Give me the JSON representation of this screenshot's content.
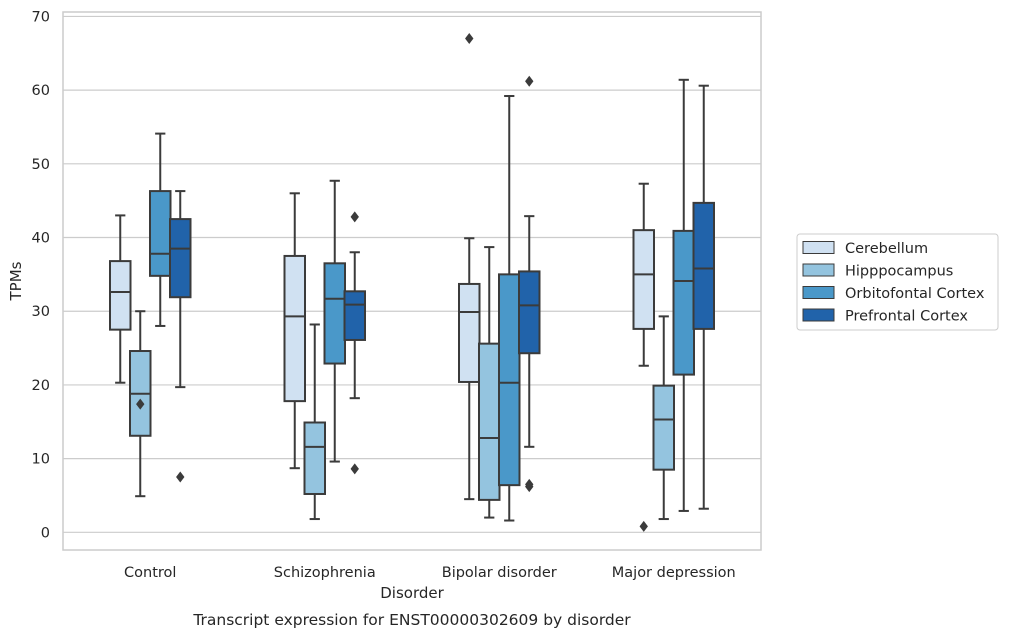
{
  "chart_data": {
    "type": "boxplot",
    "title": "",
    "caption": "Transcript expression for ENST00000302609 by disorder",
    "xlabel": "Disorder",
    "ylabel": "TPMs",
    "ylim": [
      -2.4,
      70.6
    ],
    "yticks": [
      0,
      10,
      20,
      30,
      40,
      50,
      60,
      70
    ],
    "grid": "horizontal",
    "legend_position": "right",
    "categories": [
      "Control",
      "Schizophrenia",
      "Bipolar disorder",
      "Major depression"
    ],
    "series": [
      {
        "name": "Cerebellum",
        "color": "#d0e1f2",
        "boxes": [
          {
            "whislo": 20.3,
            "q1": 27.5,
            "med": 32.6,
            "q3": 36.8,
            "whishi": 43.0,
            "fliers": []
          },
          {
            "whislo": 8.7,
            "q1": 17.8,
            "med": 29.3,
            "q3": 37.5,
            "whishi": 46.0,
            "fliers": []
          },
          {
            "whislo": 4.5,
            "q1": 20.4,
            "med": 29.9,
            "q3": 33.7,
            "whishi": 39.9,
            "fliers": [
              67.0
            ]
          },
          {
            "whislo": 22.6,
            "q1": 27.6,
            "med": 35.0,
            "q3": 41.0,
            "whishi": 47.3,
            "fliers": [
              0.8
            ]
          }
        ]
      },
      {
        "name": "Hipppocampus",
        "color": "#94c4df",
        "boxes": [
          {
            "whislo": 4.9,
            "q1": 13.1,
            "med": 18.8,
            "q3": 24.6,
            "whishi": 30.0,
            "fliers": [
              17.4
            ]
          },
          {
            "whislo": 1.8,
            "q1": 5.2,
            "med": 11.6,
            "q3": 14.9,
            "whishi": 28.2,
            "fliers": []
          },
          {
            "whislo": 2.0,
            "q1": 4.4,
            "med": 12.8,
            "q3": 25.6,
            "whishi": 38.7,
            "fliers": []
          },
          {
            "whislo": 1.8,
            "q1": 8.5,
            "med": 15.3,
            "q3": 19.9,
            "whishi": 29.3,
            "fliers": []
          }
        ]
      },
      {
        "name": "Orbitofontal Cortex",
        "color": "#4a98c9",
        "boxes": [
          {
            "whislo": 28.0,
            "q1": 34.8,
            "med": 37.8,
            "q3": 46.3,
            "whishi": 54.1,
            "fliers": []
          },
          {
            "whislo": 9.6,
            "q1": 22.9,
            "med": 31.7,
            "q3": 36.5,
            "whishi": 47.7,
            "fliers": []
          },
          {
            "whislo": 1.6,
            "q1": 6.4,
            "med": 20.3,
            "q3": 35.0,
            "whishi": 59.2,
            "fliers": []
          },
          {
            "whislo": 2.9,
            "q1": 21.4,
            "med": 34.1,
            "q3": 40.9,
            "whishi": 61.4,
            "fliers": []
          }
        ]
      },
      {
        "name": "Prefrontal Cortex",
        "color": "#2163aa",
        "boxes": [
          {
            "whislo": 19.7,
            "q1": 31.9,
            "med": 38.5,
            "q3": 42.5,
            "whishi": 46.3,
            "fliers": [
              7.5
            ]
          },
          {
            "whislo": 18.2,
            "q1": 26.1,
            "med": 30.9,
            "q3": 32.7,
            "whishi": 38.0,
            "fliers": [
              42.8,
              8.6
            ]
          },
          {
            "whislo": 11.6,
            "q1": 24.3,
            "med": 30.8,
            "q3": 35.4,
            "whishi": 42.9,
            "fliers": [
              61.2,
              6.2,
              6.5
            ]
          },
          {
            "whislo": 3.2,
            "q1": 27.6,
            "med": 35.8,
            "q3": 44.7,
            "whishi": 60.6,
            "fliers": []
          }
        ]
      }
    ]
  }
}
